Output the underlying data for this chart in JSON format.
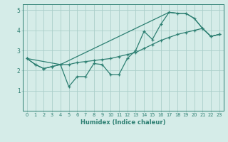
{
  "xlabel": "Humidex (Indice chaleur)",
  "xlim": [
    -0.5,
    23.5
  ],
  "ylim": [
    0,
    5.3
  ],
  "yticks": [
    1,
    2,
    3,
    4,
    5
  ],
  "xticks": [
    0,
    1,
    2,
    3,
    4,
    5,
    6,
    7,
    8,
    9,
    10,
    11,
    12,
    13,
    14,
    15,
    16,
    17,
    18,
    19,
    20,
    21,
    22,
    23
  ],
  "bg_color": "#d5ece8",
  "grid_color": "#aacfca",
  "line_color": "#2d7f72",
  "line1_x": [
    0,
    1,
    2,
    3,
    4,
    5,
    6,
    7,
    8,
    9,
    10,
    11,
    12,
    13,
    14,
    15,
    16,
    17,
    18,
    19,
    20,
    21,
    22,
    23
  ],
  "line1_y": [
    2.6,
    2.3,
    2.1,
    2.2,
    2.3,
    1.2,
    1.7,
    1.7,
    2.35,
    2.3,
    1.8,
    1.8,
    2.6,
    3.0,
    3.95,
    3.55,
    4.3,
    4.9,
    4.85,
    4.85,
    4.6,
    4.1,
    3.7,
    3.8
  ],
  "line2_x": [
    0,
    4,
    17,
    18,
    19,
    20,
    21,
    22,
    23
  ],
  "line2_y": [
    2.6,
    2.3,
    4.9,
    4.85,
    4.85,
    4.6,
    4.1,
    3.7,
    3.8
  ],
  "line3_x": [
    0,
    1,
    2,
    3,
    4,
    5,
    6,
    7,
    8,
    9,
    10,
    11,
    12,
    13,
    14,
    15,
    16,
    17,
    18,
    19,
    20,
    21,
    22,
    23
  ],
  "line3_y": [
    2.6,
    2.3,
    2.1,
    2.2,
    2.3,
    2.3,
    2.4,
    2.45,
    2.5,
    2.55,
    2.6,
    2.7,
    2.8,
    2.9,
    3.1,
    3.3,
    3.5,
    3.65,
    3.8,
    3.9,
    4.0,
    4.1,
    3.7,
    3.8
  ]
}
